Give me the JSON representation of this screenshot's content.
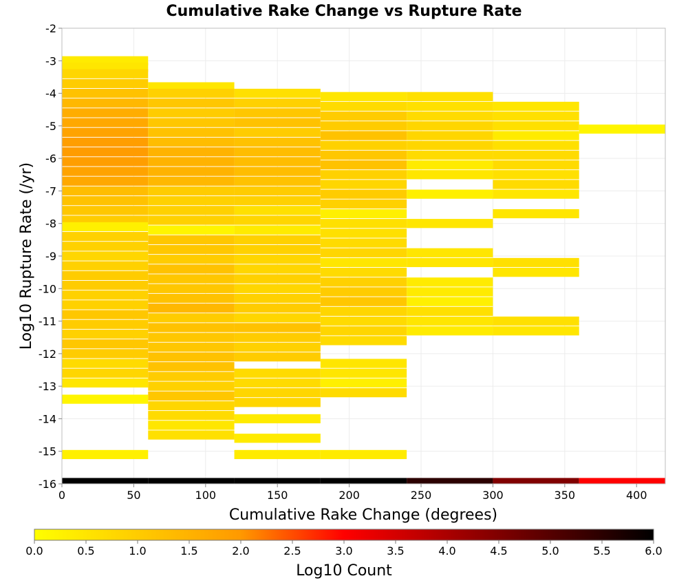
{
  "chart_data": {
    "type": "heatmap",
    "title": "Cumulative Rake Change vs Rupture Rate",
    "xlabel": "Cumulative Rake Change (degrees)",
    "ylabel": "Log10 Rupture Rate (/yr)",
    "xlim": [
      0,
      420
    ],
    "ylim": [
      -16,
      -2
    ],
    "x_ticks": [
      0,
      50,
      100,
      150,
      200,
      250,
      300,
      350,
      400
    ],
    "y_ticks": [
      -2,
      -3,
      -4,
      -5,
      -6,
      -7,
      -8,
      -9,
      -10,
      -11,
      -12,
      -13,
      -14,
      -15,
      -16
    ],
    "x_bin_width": 60,
    "y_bin_height": 0.28,
    "grid": true,
    "colorbar": {
      "label": "Log10 Count",
      "range": [
        0,
        6
      ],
      "ticks": [
        "0.0",
        "0.5",
        "1.0",
        "1.5",
        "2.0",
        "2.5",
        "3.0",
        "3.5",
        "4.0",
        "4.5",
        "5.0",
        "5.5",
        "6.0"
      ],
      "colors": [
        "#ffff00",
        "#ff9900",
        "#ff0000",
        "#000000"
      ]
    },
    "columns": [
      {
        "x": [
          0,
          60
        ],
        "cells": [
          [
            -3.0,
            0.4
          ],
          [
            -3.2,
            0.5
          ],
          [
            -3.4,
            0.8
          ],
          [
            -3.7,
            1.0
          ],
          [
            -4.0,
            1.2
          ],
          [
            -4.3,
            1.4
          ],
          [
            -4.6,
            1.6
          ],
          [
            -4.9,
            1.7
          ],
          [
            -5.2,
            1.8
          ],
          [
            -5.5,
            1.9
          ],
          [
            -5.8,
            1.95
          ],
          [
            -6.1,
            1.9
          ],
          [
            -6.4,
            1.8
          ],
          [
            -6.7,
            1.7
          ],
          [
            -7.0,
            1.3
          ],
          [
            -7.3,
            1.2
          ],
          [
            -7.6,
            1.1
          ],
          [
            -7.9,
            1.0
          ],
          [
            -8.1,
            0.3
          ],
          [
            -8.4,
            0.9
          ],
          [
            -8.7,
            0.9
          ],
          [
            -9.0,
            0.8
          ],
          [
            -9.3,
            0.9
          ],
          [
            -9.6,
            1.0
          ],
          [
            -9.9,
            1.0
          ],
          [
            -10.2,
            0.9
          ],
          [
            -10.5,
            0.9
          ],
          [
            -10.8,
            1.1
          ],
          [
            -11.1,
            1.0
          ],
          [
            -11.4,
            0.9
          ],
          [
            -11.7,
            1.1
          ],
          [
            -12.0,
            1.0
          ],
          [
            -12.3,
            0.7
          ],
          [
            -12.6,
            0.8
          ],
          [
            -12.9,
            0.5
          ],
          [
            -13.4,
            0.2
          ],
          [
            -15.1,
            0.3
          ]
        ]
      },
      {
        "x": [
          60,
          120
        ],
        "cells": [
          [
            -3.8,
            0.5
          ],
          [
            -4.0,
            0.9
          ],
          [
            -4.3,
            1.1
          ],
          [
            -4.6,
            1.0
          ],
          [
            -4.9,
            1.1
          ],
          [
            -5.2,
            1.2
          ],
          [
            -5.5,
            1.3
          ],
          [
            -5.8,
            1.5
          ],
          [
            -6.1,
            1.5
          ],
          [
            -6.4,
            1.5
          ],
          [
            -6.7,
            1.4
          ],
          [
            -7.0,
            1.0
          ],
          [
            -7.3,
            0.9
          ],
          [
            -7.6,
            0.9
          ],
          [
            -7.9,
            0.9
          ],
          [
            -8.2,
            0.2
          ],
          [
            -8.5,
            1.1
          ],
          [
            -8.8,
            1.1
          ],
          [
            -9.1,
            1.0
          ],
          [
            -9.4,
            1.2
          ],
          [
            -9.7,
            1.1
          ],
          [
            -10.0,
            1.1
          ],
          [
            -10.3,
            1.2
          ],
          [
            -10.6,
            1.4
          ],
          [
            -10.9,
            1.0
          ],
          [
            -11.2,
            1.2
          ],
          [
            -11.5,
            1.1
          ],
          [
            -11.8,
            1.1
          ],
          [
            -12.1,
            1.2
          ],
          [
            -12.4,
            1.2
          ],
          [
            -12.7,
            1.0
          ],
          [
            -13.0,
            0.9
          ],
          [
            -13.3,
            1.1
          ],
          [
            -13.6,
            0.8
          ],
          [
            -13.9,
            0.7
          ],
          [
            -14.2,
            0.5
          ],
          [
            -14.5,
            0.6
          ]
        ]
      },
      {
        "x": [
          120,
          180
        ],
        "cells": [
          [
            -4.0,
            0.6
          ],
          [
            -4.3,
            0.9
          ],
          [
            -4.6,
            1.1
          ],
          [
            -4.9,
            1.2
          ],
          [
            -5.2,
            1.0
          ],
          [
            -5.5,
            1.2
          ],
          [
            -5.8,
            1.3
          ],
          [
            -6.1,
            1.3
          ],
          [
            -6.4,
            1.3
          ],
          [
            -6.7,
            1.2
          ],
          [
            -7.0,
            1.0
          ],
          [
            -7.3,
            0.9
          ],
          [
            -7.6,
            0.6
          ],
          [
            -7.9,
            0.8
          ],
          [
            -8.2,
            0.4
          ],
          [
            -8.5,
            0.9
          ],
          [
            -8.8,
            0.9
          ],
          [
            -9.1,
            0.8
          ],
          [
            -9.4,
            0.8
          ],
          [
            -9.7,
            0.9
          ],
          [
            -10.0,
            0.8
          ],
          [
            -10.3,
            0.9
          ],
          [
            -10.6,
            1.0
          ],
          [
            -10.9,
            0.8
          ],
          [
            -11.2,
            1.2
          ],
          [
            -11.5,
            1.0
          ],
          [
            -11.8,
            0.9
          ],
          [
            -12.1,
            1.0
          ],
          [
            -12.6,
            0.7
          ],
          [
            -12.9,
            0.7
          ],
          [
            -13.2,
            0.8
          ],
          [
            -13.5,
            0.8
          ],
          [
            -14.0,
            0.4
          ],
          [
            -14.6,
            0.4
          ],
          [
            -15.1,
            0.4
          ]
        ]
      },
      {
        "x": [
          180,
          240
        ],
        "cells": [
          [
            -4.1,
            0.5
          ],
          [
            -4.4,
            0.7
          ],
          [
            -4.7,
            1.0
          ],
          [
            -5.0,
            1.0
          ],
          [
            -5.3,
            1.2
          ],
          [
            -5.6,
            0.9
          ],
          [
            -5.9,
            1.1
          ],
          [
            -6.2,
            1.2
          ],
          [
            -6.5,
            0.9
          ],
          [
            -6.8,
            0.8
          ],
          [
            -7.1,
            1.0
          ],
          [
            -7.4,
            0.9
          ],
          [
            -7.7,
            0.3
          ],
          [
            -8.0,
            0.6
          ],
          [
            -8.3,
            0.6
          ],
          [
            -8.6,
            0.7
          ],
          [
            -8.9,
            0.8
          ],
          [
            -9.2,
            0.5
          ],
          [
            -9.5,
            0.7
          ],
          [
            -9.8,
            0.9
          ],
          [
            -10.1,
            1.0
          ],
          [
            -10.4,
            1.1
          ],
          [
            -10.7,
            0.8
          ],
          [
            -11.0,
            0.7
          ],
          [
            -11.3,
            0.8
          ],
          [
            -11.6,
            0.7
          ],
          [
            -12.3,
            0.5
          ],
          [
            -12.6,
            0.5
          ],
          [
            -12.9,
            0.3
          ],
          [
            -13.2,
            0.7
          ],
          [
            -15.1,
            0.4
          ]
        ]
      },
      {
        "x": [
          240,
          300
        ],
        "cells": [
          [
            -4.1,
            0.6
          ],
          [
            -4.4,
            0.6
          ],
          [
            -4.7,
            0.7
          ],
          [
            -5.0,
            0.8
          ],
          [
            -5.3,
            0.8
          ],
          [
            -5.6,
            0.8
          ],
          [
            -5.9,
            0.7
          ],
          [
            -6.2,
            0.4
          ],
          [
            -6.5,
            0.5
          ],
          [
            -7.1,
            0.3
          ],
          [
            -8.0,
            0.5
          ],
          [
            -8.9,
            0.5
          ],
          [
            -9.2,
            0.5
          ],
          [
            -9.8,
            0.4
          ],
          [
            -10.1,
            0.4
          ],
          [
            -10.4,
            0.3
          ],
          [
            -10.7,
            0.6
          ],
          [
            -11.0,
            0.5
          ],
          [
            -11.3,
            0.4
          ]
        ]
      },
      {
        "x": [
          300,
          360
        ],
        "cells": [
          [
            -4.4,
            0.5
          ],
          [
            -4.7,
            0.6
          ],
          [
            -5.0,
            0.6
          ],
          [
            -5.3,
            0.4
          ],
          [
            -5.6,
            0.6
          ],
          [
            -5.9,
            0.7
          ],
          [
            -6.2,
            0.7
          ],
          [
            -6.5,
            0.6
          ],
          [
            -6.8,
            0.7
          ],
          [
            -7.1,
            0.5
          ],
          [
            -7.7,
            0.5
          ],
          [
            -9.2,
            0.6
          ],
          [
            -9.5,
            0.5
          ],
          [
            -11.0,
            0.6
          ],
          [
            -11.3,
            0.5
          ]
        ]
      },
      {
        "x": [
          360,
          420
        ],
        "cells": [
          [
            -5.1,
            0.2
          ]
        ]
      }
    ],
    "bottom_strip": {
      "y": [
        -16.0,
        -15.82
      ],
      "cells": [
        [
          0,
          60,
          6.0
        ],
        [
          60,
          120,
          6.0
        ],
        [
          120,
          180,
          6.0
        ],
        [
          180,
          240,
          6.0
        ],
        [
          240,
          300,
          5.5
        ],
        [
          300,
          360,
          4.5
        ],
        [
          360,
          420,
          3.0
        ]
      ]
    }
  }
}
